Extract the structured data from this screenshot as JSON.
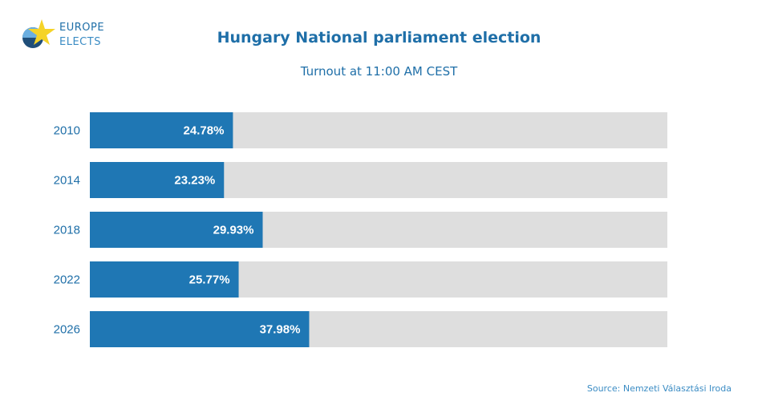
{
  "logo": {
    "line1": "EUROPE",
    "line2": "ELECTS",
    "icon": "europe-elects-star-icon"
  },
  "colors": {
    "bar_fill": "#1f77b4",
    "bar_track": "#dedede",
    "text_accent": "#1f6fa8",
    "value_label": "#ffffff",
    "logo_star": "#f5d327",
    "logo_circle_dark": "#1f4e79",
    "logo_circle_light": "#6aaee0"
  },
  "source": "Source: Nemzeti Választási Iroda",
  "chart_data": {
    "type": "bar",
    "orientation": "horizontal",
    "title": "Hungary National parliament election",
    "subtitle": "Turnout at 11:00 AM CEST",
    "xlabel": "",
    "ylabel": "",
    "xlim": [
      0,
      100
    ],
    "grid": false,
    "legend": "none",
    "categories": [
      "2010",
      "2014",
      "2018",
      "2022",
      "2026"
    ],
    "values": [
      24.78,
      23.23,
      29.93,
      25.77,
      37.98
    ],
    "value_labels": [
      "24.78%",
      "23.23%",
      "29.93%",
      "25.77%",
      "37.98%"
    ]
  }
}
